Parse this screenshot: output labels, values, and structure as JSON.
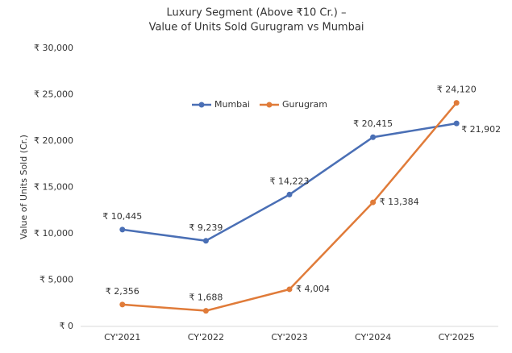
{
  "chart_data": {
    "type": "line",
    "title": [
      "Luxury Segment (Above ₹10 Cr.) –",
      "Value of Units Sold Gurugram vs Mumbai"
    ],
    "y_label": "Value of Units Sold (Cr.)",
    "categories": [
      "CY'2021",
      "CY'2022",
      "CY'2023",
      "CY'2024",
      "CY'2025"
    ],
    "series": [
      {
        "name": "Mumbai",
        "color": "#4a6fb5",
        "values": [
          10445,
          9239,
          14223,
          20415,
          21902
        ],
        "value_labels": [
          "₹ 10,445",
          "₹ 9,239",
          "₹ 14,223",
          "₹ 20,415",
          "₹ 21,902"
        ]
      },
      {
        "name": "Gurugram",
        "color": "#e07b39",
        "values": [
          2356,
          1688,
          4004,
          13384,
          24120
        ],
        "value_labels": [
          "₹ 2,356",
          "₹ 1,688",
          "₹ 4,004",
          "₹ 13,384",
          "₹ 24,120"
        ]
      }
    ],
    "ylim": [
      0,
      30000
    ],
    "yticks": [
      {
        "value": 0,
        "label": "₹ 0"
      },
      {
        "value": 5000,
        "label": "₹ 5,000"
      },
      {
        "value": 10000,
        "label": "₹ 10,000"
      },
      {
        "value": 15000,
        "label": "₹ 15,000"
      },
      {
        "value": 20000,
        "label": "₹ 20,000"
      },
      {
        "value": 25000,
        "label": "₹ 25,000"
      },
      {
        "value": 30000,
        "label": "₹ 30,000"
      }
    ],
    "grid": false,
    "legend": "top"
  }
}
